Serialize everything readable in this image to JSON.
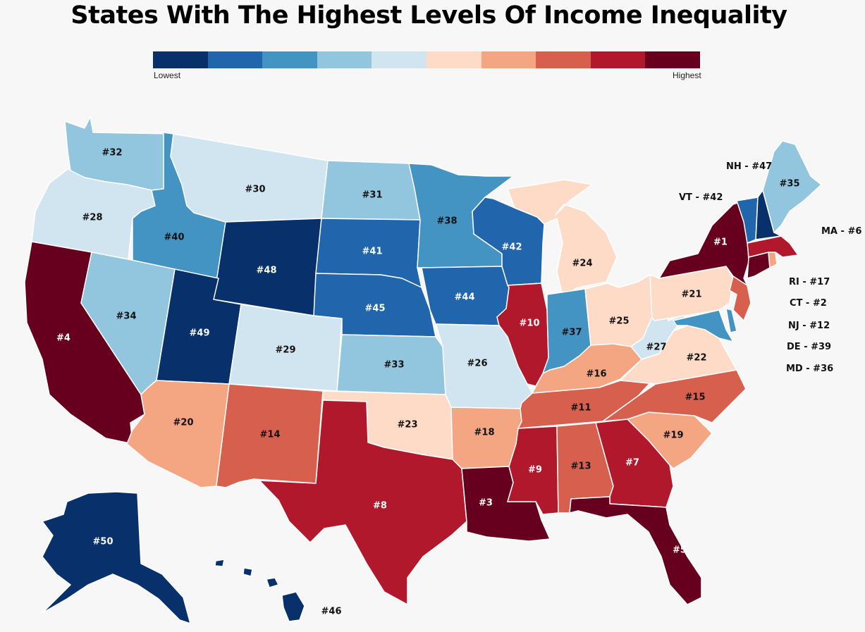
{
  "title": "States With The Highest Levels Of Income Inequality",
  "legend": {
    "low_label": "Lowest",
    "high_label": "Highest",
    "colors": [
      "#08306b",
      "#2166ac",
      "#4393c3",
      "#92c5de",
      "#d1e5f0",
      "#fddbc7",
      "#f4a582",
      "#d6604d",
      "#b2182b",
      "#67001f"
    ]
  },
  "states": {
    "WA": {
      "rank": "#32",
      "level": 4
    },
    "OR": {
      "rank": "#28",
      "level": 5
    },
    "CA": {
      "rank": "#4",
      "level": 10
    },
    "ID": {
      "rank": "#40",
      "level": 3
    },
    "NV": {
      "rank": "#34",
      "level": 4
    },
    "MT": {
      "rank": "#30",
      "level": 5
    },
    "WY": {
      "rank": "#48",
      "level": 1
    },
    "UT": {
      "rank": "#49",
      "level": 1
    },
    "AZ": {
      "rank": "#20",
      "level": 7
    },
    "CO": {
      "rank": "#29",
      "level": 5
    },
    "NM": {
      "rank": "#14",
      "level": 8
    },
    "ND": {
      "rank": "#31",
      "level": 4
    },
    "SD": {
      "rank": "#41",
      "level": 2
    },
    "NE": {
      "rank": "#45",
      "level": 2
    },
    "KS": {
      "rank": "#33",
      "level": 4
    },
    "OK": {
      "rank": "#23",
      "level": 6
    },
    "TX": {
      "rank": "#8",
      "level": 9
    },
    "MN": {
      "rank": "#38",
      "level": 3
    },
    "IA": {
      "rank": "#44",
      "level": 2
    },
    "MO": {
      "rank": "#26",
      "level": 5
    },
    "AR": {
      "rank": "#18",
      "level": 7
    },
    "LA": {
      "rank": "#3",
      "level": 10
    },
    "WI": {
      "rank": "#42",
      "level": 2
    },
    "IL": {
      "rank": "#10",
      "level": 9
    },
    "MI": {
      "rank": "#24",
      "level": 6
    },
    "IN": {
      "rank": "#37",
      "level": 3
    },
    "OH": {
      "rank": "#25",
      "level": 6
    },
    "KY": {
      "rank": "#16",
      "level": 7
    },
    "TN": {
      "rank": "#11",
      "level": 8
    },
    "MS": {
      "rank": "#9",
      "level": 9
    },
    "AL": {
      "rank": "#13",
      "level": 8
    },
    "GA": {
      "rank": "#7",
      "level": 9
    },
    "FL": {
      "rank": "#5",
      "level": 10
    },
    "SC": {
      "rank": "#19",
      "level": 7
    },
    "NC": {
      "rank": "#15",
      "level": 8
    },
    "VA": {
      "rank": "#22",
      "level": 6
    },
    "WV": {
      "rank": "#27",
      "level": 5
    },
    "PA": {
      "rank": "#21",
      "level": 6
    },
    "NY": {
      "rank": "#1",
      "level": 10
    },
    "ME": {
      "rank": "#35",
      "level": 4
    },
    "AK": {
      "rank": "#50",
      "level": 1
    },
    "HI": {
      "rank": "#46",
      "level": 1
    },
    "NH": {
      "rank": "#47",
      "level": 1
    },
    "VT": {
      "rank": "#42",
      "level": 2
    },
    "MA": {
      "rank": "#6",
      "level": 9
    },
    "RI": {
      "rank": "#17",
      "level": 7
    },
    "CT": {
      "rank": "#2",
      "level": 10
    },
    "NJ": {
      "rank": "#12",
      "level": 8
    },
    "DE": {
      "rank": "#39",
      "level": 3
    },
    "MD": {
      "rank": "#36",
      "level": 3
    }
  },
  "side_labels": {
    "NH": "NH - #47",
    "VT": "VT - #42",
    "MA": "MA - #6",
    "RI": "RI - #17",
    "CT": "CT - #2",
    "NJ": "NJ - #12",
    "DE": "DE - #39",
    "MD": "MD - #36"
  }
}
